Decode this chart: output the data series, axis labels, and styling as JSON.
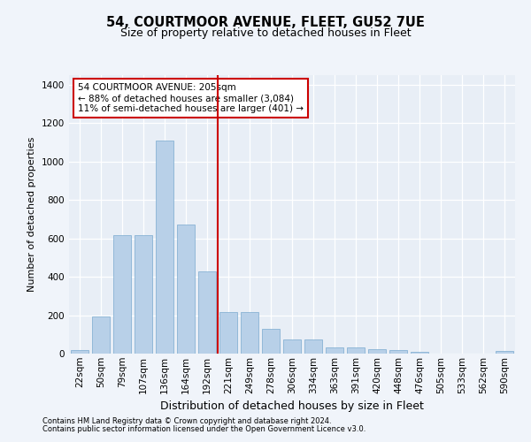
{
  "title_line1": "54, COURTMOOR AVENUE, FLEET, GU52 7UE",
  "title_line2": "Size of property relative to detached houses in Fleet",
  "xlabel": "Distribution of detached houses by size in Fleet",
  "ylabel": "Number of detached properties",
  "footnote1": "Contains HM Land Registry data © Crown copyright and database right 2024.",
  "footnote2": "Contains public sector information licensed under the Open Government Licence v3.0.",
  "annotation_line1": "54 COURTMOOR AVENUE: 205sqm",
  "annotation_line2": "← 88% of detached houses are smaller (3,084)",
  "annotation_line3": "11% of semi-detached houses are larger (401) →",
  "bar_color": "#b8d0e8",
  "bar_edge_color": "#7aaacf",
  "vline_color": "#cc0000",
  "vline_x": 6.5,
  "categories": [
    "22sqm",
    "50sqm",
    "79sqm",
    "107sqm",
    "136sqm",
    "164sqm",
    "192sqm",
    "221sqm",
    "249sqm",
    "278sqm",
    "306sqm",
    "334sqm",
    "363sqm",
    "391sqm",
    "420sqm",
    "448sqm",
    "476sqm",
    "505sqm",
    "533sqm",
    "562sqm",
    "590sqm"
  ],
  "values": [
    20,
    195,
    615,
    615,
    1110,
    670,
    430,
    215,
    215,
    130,
    72,
    72,
    32,
    32,
    25,
    18,
    10,
    0,
    0,
    0,
    12
  ],
  "ylim": [
    0,
    1450
  ],
  "yticks": [
    0,
    200,
    400,
    600,
    800,
    1000,
    1200,
    1400
  ],
  "fig_bg_color": "#f0f4fa",
  "plot_bg_color": "#e8eef6",
  "grid_color": "#ffffff",
  "annotation_box_facecolor": "#ffffff",
  "annotation_box_edgecolor": "#cc0000",
  "title1_fontsize": 10.5,
  "title2_fontsize": 9,
  "ylabel_fontsize": 8,
  "xlabel_fontsize": 9,
  "tick_fontsize": 7.5,
  "footnote_fontsize": 6,
  "annotation_fontsize": 7.5
}
